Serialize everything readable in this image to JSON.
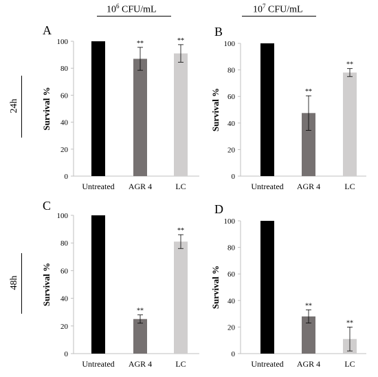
{
  "header": {
    "col1": {
      "base": "10",
      "exp": "6",
      "unit": " CFU/mL"
    },
    "col2": {
      "base": "10",
      "exp": "7",
      "unit": " CFU/mL"
    }
  },
  "rows": {
    "row1": "24h",
    "row2": "48h"
  },
  "colors": {
    "untreated": "#000000",
    "agr4": "#767171",
    "lc": "#d0cece",
    "axis": "#bfbfbf"
  },
  "chart_data": [
    {
      "panel": "A",
      "type": "bar",
      "categories": [
        "Untreated",
        "AGR 4",
        "LC"
      ],
      "values": [
        100,
        87,
        91
      ],
      "errors": [
        0,
        8.5,
        6.5
      ],
      "annotations": [
        "",
        "**",
        "**"
      ],
      "ylabel": "Survival %",
      "ylim": [
        0,
        100
      ],
      "yticks": [
        0,
        20,
        40,
        60,
        80,
        100
      ],
      "grid": false
    },
    {
      "panel": "B",
      "type": "bar",
      "categories": [
        "Untreated",
        "AGR 4",
        "LC"
      ],
      "values": [
        100,
        47.5,
        78
      ],
      "errors": [
        0,
        13,
        3
      ],
      "annotations": [
        "",
        "**",
        "**"
      ],
      "ylabel": "Survival %",
      "ylim": [
        0,
        100
      ],
      "yticks": [
        0,
        20,
        40,
        60,
        80,
        100
      ],
      "grid": false
    },
    {
      "panel": "C",
      "type": "bar",
      "categories": [
        "Untreated",
        "AGR 4",
        "LC"
      ],
      "values": [
        100,
        25,
        81
      ],
      "errors": [
        0,
        3,
        5
      ],
      "annotations": [
        "",
        "**",
        "**"
      ],
      "ylabel": "Survival %",
      "ylim": [
        0,
        100
      ],
      "yticks": [
        0,
        20,
        40,
        60,
        80,
        100
      ],
      "grid": false
    },
    {
      "panel": "D",
      "type": "bar",
      "categories": [
        "Untreated",
        "AGR 4",
        "LC"
      ],
      "values": [
        100,
        28,
        11
      ],
      "errors": [
        0,
        5,
        9
      ],
      "annotations": [
        "",
        "**",
        "**"
      ],
      "ylabel": "Survival %",
      "ylim": [
        0,
        100
      ],
      "yticks": [
        0,
        20,
        40,
        60,
        80,
        100
      ],
      "grid": false
    }
  ]
}
